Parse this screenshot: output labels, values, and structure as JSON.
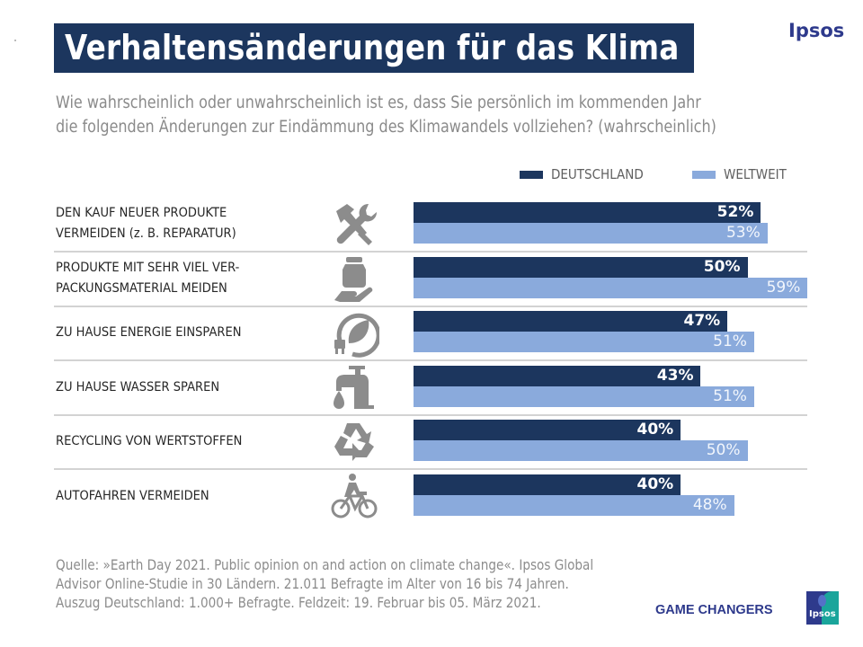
{
  "header": {
    "title": "Verhaltensänderungen für das Klima",
    "brand": "Ipsos",
    "subtitle_line1": "Wie wahrscheinlich oder unwahrscheinlich ist es, dass Sie persönlich im kommenden Jahr",
    "subtitle_line2": "die folgenden Änderungen zur Eindämmung des Klimawandels vollziehen? (wahrscheinlich)"
  },
  "colors": {
    "deutschland": "#1c365e",
    "weltweit": "#8aaadc",
    "title_bg": "#1c365e",
    "brand": "#2e3a8c"
  },
  "chart_data": {
    "type": "bar",
    "orientation": "horizontal",
    "title": "Verhaltensänderungen für das Klima",
    "subtitle": "Wie wahrscheinlich oder unwahrscheinlich ist es, dass Sie persönlich im kommenden Jahr die folgenden Änderungen zur Eindämmung des Klimawandels vollziehen? (wahrscheinlich)",
    "xlabel": "",
    "ylabel": "",
    "xlim": [
      0,
      100
    ],
    "grid": false,
    "legend_position": "top-right",
    "unit": "%",
    "categories": [
      {
        "line1": "DEN KAUF NEUER PRODUKTE",
        "line2": "VERMEIDEN  (z. B. REPARATUR)",
        "icon": "tools-icon"
      },
      {
        "line1": "PRODUKTE MIT SEHR VIEL VER-",
        "line2": "PACKUNGSMATERIAL  MEIDEN",
        "icon": "jar-in-hand-icon"
      },
      {
        "line1": "ZU HAUSE  ENERGIE  EINSPAREN",
        "line2": "",
        "icon": "energy-leaf-plug-icon"
      },
      {
        "line1": "ZU HAUSE  WASSER  SPAREN",
        "line2": "",
        "icon": "water-tap-icon"
      },
      {
        "line1": "RECYCLING  VON WERTSTOFFEN",
        "line2": "",
        "icon": "recycling-icon"
      },
      {
        "line1": "AUTOFAHREN  VERMEIDEN",
        "line2": "",
        "icon": "bicycle-icon"
      }
    ],
    "series": [
      {
        "name": "DEUTSCHLAND",
        "values": [
          52,
          50,
          47,
          43,
          40,
          40
        ],
        "labels": [
          "52%",
          "50%",
          "47%",
          "43%",
          "40%",
          "40%"
        ]
      },
      {
        "name": "WELTWEIT",
        "values": [
          53,
          59,
          51,
          51,
          50,
          48
        ],
        "labels": [
          "53%",
          "59%",
          "51%",
          "51%",
          "50%",
          "48%"
        ]
      }
    ]
  },
  "footer": {
    "source_line1": "Quelle: »Earth Day 2021. Public opinion on and action on climate change«. Ipsos Global",
    "source_line2": "Advisor Online-Studie in 30 Ländern. 21.011 Befragte im Alter von 16 bis 74 Jahren.",
    "source_line3": "Auszug Deutschland: 1.000+ Befragte. Feldzeit: 19. Februar bis 05. März 2021.",
    "tagline": "GAME CHANGERS",
    "logo_text": "Ipsos"
  }
}
